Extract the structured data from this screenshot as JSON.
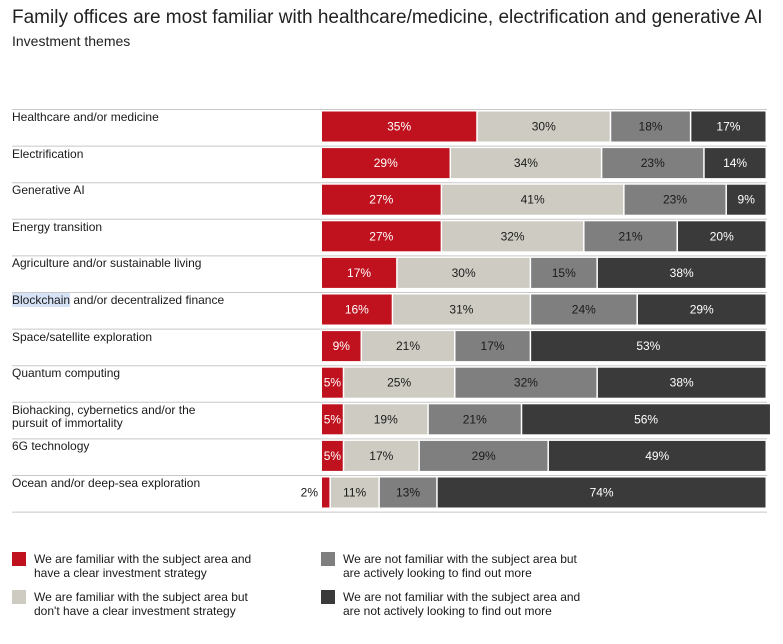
{
  "title": "Family offices are most familiar with healthcare/medicine, electrification and generative AI",
  "subtitle": "Investment themes",
  "colors": {
    "s1": "#c0121e",
    "s2": "#cdcbc2",
    "s3": "#7f7f7f",
    "s4": "#3a3a3a",
    "s1_text": "#ffffff",
    "s2_text": "#1a1a1a",
    "s3_text": "#1a1a1a",
    "s4_text": "#ffffff",
    "rule": "#c8c8c8"
  },
  "chart_data": {
    "type": "bar",
    "orientation": "horizontal",
    "stacked": true,
    "title": "Family offices are most familiar with healthcare/medicine, electrification and generative AI",
    "subtitle": "Investment themes",
    "categories": [
      [
        "Healthcare and/or medicine"
      ],
      [
        "Electrification"
      ],
      [
        "Generative AI"
      ],
      [
        "Energy transition"
      ],
      [
        "Agriculture and/or sustainable living"
      ],
      [
        "Blockchain and/or decentralized finance"
      ],
      [
        "Space/satellite exploration"
      ],
      [
        "Quantum computing"
      ],
      [
        "Biohacking, cybernetics and/or the",
        "pursuit of immortality"
      ],
      [
        "6G technology"
      ],
      [
        "Ocean and/or deep-sea exploration"
      ]
    ],
    "series": [
      {
        "name": "We are familiar with the subject area and have a clear investment strategy",
        "legend_lines": [
          "We are familiar with the subject area and",
          "have a clear investment strategy"
        ],
        "values": [
          35,
          29,
          27,
          27,
          17,
          16,
          9,
          5,
          5,
          5,
          2
        ]
      },
      {
        "name": "We are familiar with the subject area but don't have a clear investment strategy",
        "legend_lines": [
          "We are familiar with the subject area but",
          "don't have a clear investment strategy"
        ],
        "values": [
          30,
          34,
          41,
          32,
          30,
          31,
          21,
          25,
          19,
          17,
          11
        ]
      },
      {
        "name": "We are not familiar with the subject area but are actively looking to find out more",
        "legend_lines": [
          "We are not familiar with the subject area but",
          "are actively looking to find out more"
        ],
        "values": [
          18,
          23,
          23,
          21,
          15,
          24,
          17,
          32,
          21,
          29,
          13
        ]
      },
      {
        "name": "We are not familiar with the subject area and are not actively looking to find out more",
        "legend_lines": [
          "We are not familiar with the subject area and",
          "are not actively looking to find out more"
        ],
        "values": [
          17,
          14,
          9,
          20,
          38,
          29,
          53,
          38,
          56,
          49,
          74
        ]
      }
    ],
    "value_suffix": "%",
    "xlim": [
      0,
      100
    ],
    "legend_position": "bottom"
  }
}
